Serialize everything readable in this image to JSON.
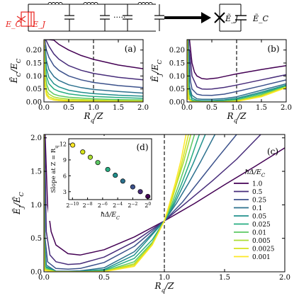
{
  "circuit": {
    "ec_label": "E_C",
    "ej_label": "E_J",
    "ej_eff_label": "Ẽ_J",
    "ec_eff_label": "Ẽ_C",
    "dots": "·····"
  },
  "colors": {
    "red": "#e8231e",
    "series": [
      "#440154",
      "#472c7a",
      "#3b518b",
      "#2c718e",
      "#21908d",
      "#27ad81",
      "#5cc863",
      "#aadc32",
      "#d5e21a",
      "#fde725"
    ]
  },
  "chart_data": [
    {
      "id": "a",
      "panel_label": "(a)",
      "type": "line",
      "xlabel": "R_q/Z",
      "ylabel": "Ẽ_C/E_C",
      "xlim": [
        0,
        2.0
      ],
      "ylim": [
        0,
        0.24
      ],
      "xticks": [
        "0.0",
        "0.5",
        "1.0",
        "1.5",
        "2.0"
      ],
      "yticks": [
        "0.00",
        "0.05",
        "0.10",
        "0.15",
        "0.20"
      ],
      "vline": 1.0,
      "series": [
        {
          "delta": 1.0,
          "x": [
            0.01,
            0.05,
            0.1,
            0.2,
            0.3,
            0.5,
            0.75,
            1.0,
            1.5,
            2.0
          ],
          "y": [
            0.24,
            0.24,
            0.24,
            0.238,
            0.222,
            0.2,
            0.179,
            0.164,
            0.142,
            0.128
          ]
        },
        {
          "delta": 0.5,
          "x": [
            0.02,
            0.05,
            0.1,
            0.2,
            0.3,
            0.5,
            0.75,
            1.0,
            1.5,
            2.0
          ],
          "y": [
            0.24,
            0.235,
            0.215,
            0.185,
            0.165,
            0.14,
            0.122,
            0.11,
            0.095,
            0.085
          ]
        },
        {
          "delta": 0.25,
          "x": [
            0.02,
            0.05,
            0.1,
            0.2,
            0.3,
            0.5,
            0.75,
            1.0,
            1.5,
            2.0
          ],
          "y": [
            0.24,
            0.2,
            0.172,
            0.14,
            0.122,
            0.1,
            0.085,
            0.075,
            0.063,
            0.055
          ]
        },
        {
          "delta": 0.1,
          "x": [
            0.02,
            0.05,
            0.1,
            0.2,
            0.3,
            0.5,
            0.75,
            1.0,
            1.5,
            2.0
          ],
          "y": [
            0.22,
            0.16,
            0.125,
            0.098,
            0.083,
            0.066,
            0.055,
            0.048,
            0.04,
            0.034
          ]
        },
        {
          "delta": 0.05,
          "x": [
            0.02,
            0.05,
            0.1,
            0.2,
            0.3,
            0.5,
            0.75,
            1.0,
            1.5,
            2.0
          ],
          "y": [
            0.2,
            0.13,
            0.095,
            0.07,
            0.058,
            0.045,
            0.037,
            0.032,
            0.026,
            0.022
          ]
        },
        {
          "delta": 0.025,
          "x": [
            0.02,
            0.05,
            0.1,
            0.2,
            0.3,
            0.5,
            0.75,
            1.0,
            1.5,
            2.0
          ],
          "y": [
            0.17,
            0.1,
            0.07,
            0.05,
            0.041,
            0.031,
            0.025,
            0.021,
            0.017,
            0.014
          ]
        },
        {
          "delta": 0.01,
          "x": [
            0.01,
            0.03,
            0.06,
            0.1,
            0.2,
            0.3,
            0.5,
            1.0,
            1.5,
            2.0
          ],
          "y": [
            0.2,
            0.1,
            0.065,
            0.045,
            0.03,
            0.024,
            0.018,
            0.012,
            0.009,
            0.008
          ]
        },
        {
          "delta": 0.005,
          "x": [
            0.01,
            0.03,
            0.06,
            0.1,
            0.2,
            0.3,
            0.5,
            1.0,
            1.5,
            2.0
          ],
          "y": [
            0.16,
            0.07,
            0.042,
            0.03,
            0.019,
            0.015,
            0.011,
            0.007,
            0.005,
            0.004
          ]
        },
        {
          "delta": 0.0025,
          "x": [
            0.01,
            0.03,
            0.06,
            0.1,
            0.2,
            0.3,
            0.5,
            1.0,
            1.5,
            2.0
          ],
          "y": [
            0.12,
            0.05,
            0.03,
            0.02,
            0.012,
            0.009,
            0.006,
            0.004,
            0.003,
            0.002
          ]
        },
        {
          "delta": 0.001,
          "x": [
            0.005,
            0.02,
            0.05,
            0.1,
            0.2,
            0.3,
            0.5,
            1.0,
            1.5,
            2.0
          ],
          "y": [
            0.24,
            0.06,
            0.025,
            0.013,
            0.007,
            0.005,
            0.003,
            0.002,
            0.001,
            0.001
          ]
        }
      ]
    },
    {
      "id": "b",
      "panel_label": "(b)",
      "type": "line",
      "xlabel": "R_q/Z",
      "ylabel": "Ẽ_J/E_C",
      "xlim": [
        0,
        2.0
      ],
      "ylim": [
        0,
        0.24
      ],
      "xticks": [
        "0.0",
        "0.5",
        "1.0",
        "1.5",
        "2.0"
      ],
      "yticks": [
        "0.00",
        "0.05",
        "0.10",
        "0.15",
        "0.20"
      ],
      "vline": 1.0,
      "series": [
        {
          "delta": 1.0,
          "x": [
            0.05,
            0.1,
            0.15,
            0.2,
            0.3,
            0.4,
            0.6,
            0.8,
            1.0,
            1.5,
            2.0
          ],
          "y": [
            0.24,
            0.15,
            0.115,
            0.1,
            0.09,
            0.088,
            0.092,
            0.1,
            0.108,
            0.125,
            0.14
          ]
        },
        {
          "delta": 0.5,
          "x": [
            0.05,
            0.1,
            0.2,
            0.3,
            0.4,
            0.5,
            0.75,
            1.0,
            1.5,
            2.0
          ],
          "y": [
            0.2,
            0.1,
            0.058,
            0.05,
            0.049,
            0.05,
            0.056,
            0.065,
            0.085,
            0.105
          ]
        },
        {
          "delta": 0.25,
          "x": [
            0.03,
            0.07,
            0.1,
            0.2,
            0.3,
            0.5,
            0.75,
            1.0,
            1.5,
            2.0
          ],
          "y": [
            0.24,
            0.08,
            0.05,
            0.03,
            0.026,
            0.025,
            0.03,
            0.04,
            0.062,
            0.085
          ]
        },
        {
          "delta": 0.1,
          "x": [
            0.02,
            0.05,
            0.1,
            0.2,
            0.3,
            0.5,
            0.75,
            1.0,
            1.5,
            2.0
          ],
          "y": [
            0.24,
            0.06,
            0.025,
            0.012,
            0.01,
            0.01,
            0.013,
            0.02,
            0.045,
            0.07
          ]
        },
        {
          "delta": 0.05,
          "x": [
            0.015,
            0.04,
            0.1,
            0.2,
            0.3,
            0.5,
            0.75,
            1.0,
            1.5,
            2.0
          ],
          "y": [
            0.24,
            0.05,
            0.015,
            0.006,
            0.005,
            0.005,
            0.008,
            0.014,
            0.038,
            0.065
          ]
        },
        {
          "delta": 0.025,
          "x": [
            0.012,
            0.03,
            0.1,
            0.2,
            0.3,
            0.5,
            0.75,
            1.0,
            1.5,
            2.0
          ],
          "y": [
            0.24,
            0.045,
            0.008,
            0.003,
            0.002,
            0.002,
            0.004,
            0.01,
            0.033,
            0.062
          ]
        },
        {
          "delta": 0.01,
          "x": [
            0.01,
            0.02,
            0.05,
            0.1,
            0.3,
            0.5,
            0.75,
            1.0,
            1.5,
            2.0
          ],
          "y": [
            0.24,
            0.06,
            0.012,
            0.004,
            0.001,
            0.001,
            0.002,
            0.006,
            0.028,
            0.06
          ]
        },
        {
          "delta": 0.005,
          "x": [
            0.008,
            0.015,
            0.04,
            0.1,
            0.3,
            0.5,
            0.75,
            1.0,
            1.5,
            2.0
          ],
          "y": [
            0.24,
            0.06,
            0.01,
            0.002,
            0.0,
            0.0,
            0.001,
            0.004,
            0.025,
            0.058
          ]
        },
        {
          "delta": 0.0025,
          "x": [
            0.006,
            0.012,
            0.03,
            0.1,
            0.3,
            0.5,
            0.75,
            1.0,
            1.5,
            2.0
          ],
          "y": [
            0.24,
            0.06,
            0.01,
            0.001,
            0.0,
            0.0,
            0.001,
            0.003,
            0.023,
            0.056
          ]
        },
        {
          "delta": 0.001,
          "x": [
            0.004,
            0.008,
            0.02,
            0.1,
            0.3,
            0.5,
            0.75,
            1.0,
            1.5,
            2.0
          ],
          "y": [
            0.24,
            0.06,
            0.01,
            0.0,
            0.0,
            0.0,
            0.0,
            0.002,
            0.02,
            0.055
          ]
        }
      ]
    },
    {
      "id": "c",
      "panel_label": "(c)",
      "type": "line",
      "xlabel": "R_q/Z",
      "ylabel": "Ẽ_J/Ẽ_C",
      "xlim": [
        0,
        2.0
      ],
      "ylim": [
        0,
        2.05
      ],
      "xticks": [
        "0.0",
        "0.5",
        "1.0",
        "1.5",
        "2.0"
      ],
      "yticks": [
        "0.0",
        "0.5",
        "1.0",
        "1.5",
        "2.0"
      ],
      "vline": 1.0,
      "legend_title": "ħΔ/E_C",
      "legend_position": "right",
      "series": [
        {
          "name": "1.0",
          "x": [
            0.01,
            0.03,
            0.06,
            0.1,
            0.2,
            0.3,
            0.5,
            0.75,
            1.0,
            1.25,
            1.5,
            1.75,
            2.0
          ],
          "y": [
            2.05,
            1.0,
            0.6,
            0.4,
            0.27,
            0.25,
            0.33,
            0.52,
            0.76,
            1.02,
            1.3,
            1.57,
            1.85
          ]
        },
        {
          "name": "0.5",
          "x": [
            0.005,
            0.02,
            0.05,
            0.1,
            0.2,
            0.3,
            0.5,
            0.75,
            1.0,
            1.2,
            1.4,
            1.6,
            1.8
          ],
          "y": [
            2.05,
            0.6,
            0.25,
            0.15,
            0.11,
            0.12,
            0.22,
            0.45,
            0.76,
            1.06,
            1.36,
            1.68,
            2.05
          ]
        },
        {
          "name": "0.25",
          "x": [
            0.003,
            0.01,
            0.03,
            0.1,
            0.2,
            0.3,
            0.5,
            0.75,
            1.0,
            1.15,
            1.3,
            1.45,
            1.6
          ],
          "y": [
            2.05,
            0.5,
            0.15,
            0.05,
            0.04,
            0.05,
            0.14,
            0.38,
            0.76,
            1.04,
            1.38,
            1.72,
            2.05
          ]
        },
        {
          "name": "0.1",
          "x": [
            0.002,
            0.006,
            0.02,
            0.1,
            0.2,
            0.3,
            0.5,
            0.75,
            1.0,
            1.1,
            1.2,
            1.3,
            1.42
          ],
          "y": [
            2.05,
            0.5,
            0.1,
            0.01,
            0.01,
            0.015,
            0.06,
            0.3,
            0.76,
            1.02,
            1.32,
            1.64,
            2.05
          ]
        },
        {
          "name": "0.05",
          "x": [
            0.001,
            0.004,
            0.015,
            0.1,
            0.2,
            0.3,
            0.5,
            0.75,
            1.0,
            1.08,
            1.16,
            1.24,
            1.34
          ],
          "y": [
            2.05,
            0.5,
            0.08,
            0.005,
            0.004,
            0.006,
            0.035,
            0.25,
            0.76,
            1.0,
            1.3,
            1.62,
            2.05
          ]
        },
        {
          "name": "0.025",
          "x": [
            0.001,
            0.003,
            0.01,
            0.1,
            0.3,
            0.5,
            0.75,
            0.9,
            1.0,
            1.07,
            1.14,
            1.21,
            1.29
          ],
          "y": [
            2.05,
            0.5,
            0.07,
            0.002,
            0.003,
            0.02,
            0.2,
            0.48,
            0.76,
            1.0,
            1.3,
            1.63,
            2.05
          ]
        },
        {
          "name": "0.01",
          "x": [
            0.0005,
            0.002,
            0.008,
            0.1,
            0.3,
            0.5,
            0.75,
            0.9,
            1.0,
            1.06,
            1.12,
            1.18,
            1.25
          ],
          "y": [
            2.05,
            0.5,
            0.05,
            0.001,
            0.001,
            0.01,
            0.15,
            0.44,
            0.76,
            1.0,
            1.3,
            1.62,
            2.05
          ]
        },
        {
          "name": "0.005",
          "x": [
            0.0005,
            0.0015,
            0.006,
            0.1,
            0.3,
            0.5,
            0.75,
            0.9,
            1.0,
            1.05,
            1.1,
            1.16,
            1.22
          ],
          "y": [
            2.05,
            0.5,
            0.04,
            0.0,
            0.0,
            0.006,
            0.12,
            0.42,
            0.76,
            1.0,
            1.3,
            1.64,
            2.05
          ]
        },
        {
          "name": "0.0025",
          "x": [
            0.0003,
            0.001,
            0.005,
            0.1,
            0.3,
            0.5,
            0.75,
            0.9,
            1.0,
            1.05,
            1.1,
            1.15,
            1.2
          ],
          "y": [
            2.05,
            0.5,
            0.03,
            0.0,
            0.0,
            0.004,
            0.1,
            0.41,
            0.76,
            1.02,
            1.32,
            1.66,
            2.05
          ]
        },
        {
          "name": "0.001",
          "x": [
            0.0002,
            0.0008,
            0.004,
            0.1,
            0.3,
            0.5,
            0.75,
            0.9,
            1.0,
            1.04,
            1.09,
            1.14,
            1.18
          ],
          "y": [
            2.05,
            0.5,
            0.02,
            0.0,
            0.0,
            0.002,
            0.08,
            0.4,
            0.76,
            1.0,
            1.32,
            1.68,
            2.05
          ]
        }
      ]
    },
    {
      "id": "d",
      "panel_label": "(d)",
      "type": "scatter",
      "xlabel": "ħΔ/E_C",
      "ylabel": "Slope at Z = R_q",
      "xscale": "log2",
      "xlim": [
        -10.5,
        0.5
      ],
      "ylim": [
        1.5,
        13
      ],
      "xticks": [
        "2^{-10}",
        "2^{-8}",
        "2^{-6}",
        "2^{-4}",
        "2^{-2}",
        "2^{0}"
      ],
      "xtick_exponents": [
        -10,
        -8,
        -6,
        -4,
        -2,
        0
      ],
      "yticks": [
        "3",
        "6",
        "9",
        "12"
      ],
      "points_log2x": [
        -9.97,
        -8.64,
        -7.64,
        -6.64,
        -5.32,
        -4.32,
        -3.32,
        -2.0,
        -1.0,
        0.0
      ],
      "points_y": [
        11.8,
        10.5,
        9.5,
        8.5,
        7.2,
        6.1,
        5.0,
        3.9,
        3.0,
        2.1
      ]
    }
  ]
}
